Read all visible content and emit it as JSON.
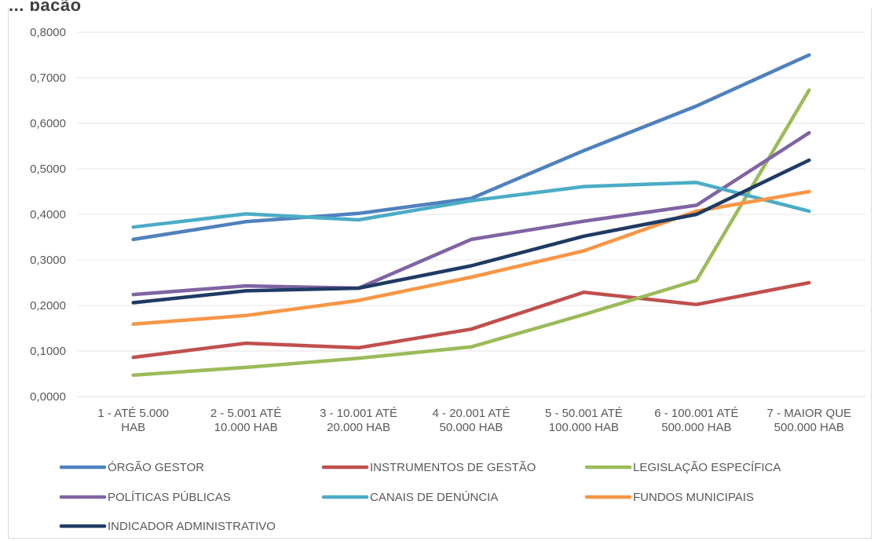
{
  "header": {
    "title_fragment": "... pação"
  },
  "chart_data": {
    "type": "line",
    "title": "",
    "xlabel": "",
    "ylabel": "",
    "ylim": [
      0,
      0.8
    ],
    "yticks": [
      "0,0000",
      "0,1000",
      "0,2000",
      "0,3000",
      "0,4000",
      "0,5000",
      "0,6000",
      "0,7000",
      "0,8000"
    ],
    "grid": true,
    "legend_position": "bottom",
    "categories": [
      [
        "1 - ATÉ 5.000",
        "HAB"
      ],
      [
        "2 - 5.001 ATÉ",
        "10.000 HAB"
      ],
      [
        "3 - 10.001 ATÉ",
        "20.000 HAB"
      ],
      [
        "4 - 20.001 ATÉ",
        "50.000 HAB"
      ],
      [
        "5 - 50.001 ATÉ",
        "100.000 HAB"
      ],
      [
        "6 - 100.001 ATÉ",
        "500.000 HAB"
      ],
      [
        "7 - MAIOR QUE",
        "500.000 HAB"
      ]
    ],
    "series": [
      {
        "name": "ÓRGÃO GESTOR",
        "color": "#4f81bd",
        "values": [
          0.345,
          0.384,
          0.402,
          0.435,
          0.54,
          0.638,
          0.75
        ]
      },
      {
        "name": "INSTRUMENTOS DE GESTÃO",
        "color": "#c0504d",
        "values": [
          0.086,
          0.117,
          0.107,
          0.148,
          0.229,
          0.202,
          0.25
        ]
      },
      {
        "name": "LEGISLAÇÃO ESPECÍFICA",
        "color": "#9bbb59",
        "values": [
          0.047,
          0.064,
          0.084,
          0.109,
          0.18,
          0.255,
          0.673
        ]
      },
      {
        "name": "POLÍTICAS PÚBLICAS",
        "color": "#8064a2",
        "values": [
          0.224,
          0.243,
          0.238,
          0.345,
          0.385,
          0.42,
          0.579
        ]
      },
      {
        "name": "CANAIS DE DENÚNCIA",
        "color": "#4bacc6",
        "values": [
          0.372,
          0.401,
          0.388,
          0.43,
          0.461,
          0.47,
          0.407
        ]
      },
      {
        "name": "FUNDOS MUNICIPAIS",
        "color": "#f79646",
        "values": [
          0.159,
          0.178,
          0.211,
          0.262,
          0.32,
          0.407,
          0.45
        ]
      },
      {
        "name": "INDICADOR ADMINISTRATIVO",
        "color": "#1f3b64",
        "values": [
          0.206,
          0.232,
          0.238,
          0.287,
          0.352,
          0.4,
          0.519
        ]
      }
    ]
  }
}
